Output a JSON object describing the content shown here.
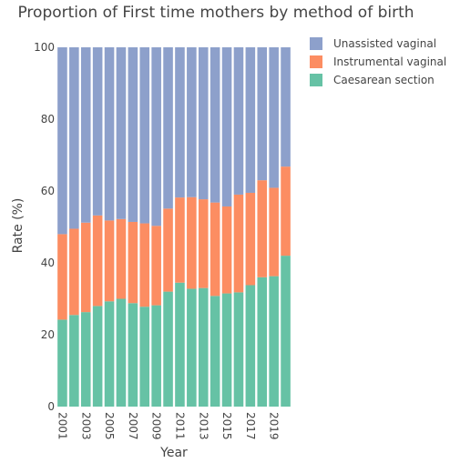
{
  "chart_data": {
    "type": "bar",
    "stacked": true,
    "title": "Proportion of First time mothers by method of birth",
    "xlabel": "Year",
    "ylabel": "Rate (%)",
    "ylim": [
      0,
      100
    ],
    "yticks": [
      0,
      20,
      40,
      60,
      80,
      100
    ],
    "categories": [
      "2001",
      "2002",
      "2003",
      "2004",
      "2005",
      "2006",
      "2007",
      "2008",
      "2009",
      "2010",
      "2011",
      "2012",
      "2013",
      "2014",
      "2015",
      "2016",
      "2017",
      "2018",
      "2019",
      "2020"
    ],
    "xtick_labels": [
      "2001",
      "2003",
      "2005",
      "2007",
      "2009",
      "2011",
      "2013",
      "2015",
      "2017",
      "2019"
    ],
    "legend_position": "top-right",
    "grid": false,
    "series": [
      {
        "name": "Caesarean section",
        "color": "#66c2a5",
        "values": [
          24.2,
          25.5,
          26.3,
          28.0,
          29.3,
          30.0,
          28.8,
          27.8,
          28.2,
          32.0,
          34.5,
          32.8,
          33.0,
          30.8,
          31.5,
          31.8,
          33.8,
          36.0,
          36.3,
          42.0
        ]
      },
      {
        "name": "Instrumental vaginal",
        "color": "#fc8d62",
        "values": [
          23.8,
          24.0,
          24.9,
          25.2,
          22.5,
          22.2,
          22.6,
          23.2,
          22.1,
          23.1,
          23.7,
          25.5,
          24.7,
          26.0,
          24.2,
          27.2,
          25.7,
          27.0,
          24.6,
          24.8
        ]
      },
      {
        "name": "Unassisted vaginal",
        "color": "#8da0cb",
        "values": [
          52.0,
          50.5,
          48.8,
          46.8,
          48.2,
          47.8,
          48.6,
          49.0,
          49.7,
          44.9,
          41.8,
          41.7,
          42.3,
          43.2,
          44.3,
          41.0,
          40.5,
          37.0,
          39.1,
          33.2
        ]
      }
    ],
    "legend_order": [
      "Unassisted vaginal",
      "Instrumental vaginal",
      "Caesarean section"
    ]
  }
}
